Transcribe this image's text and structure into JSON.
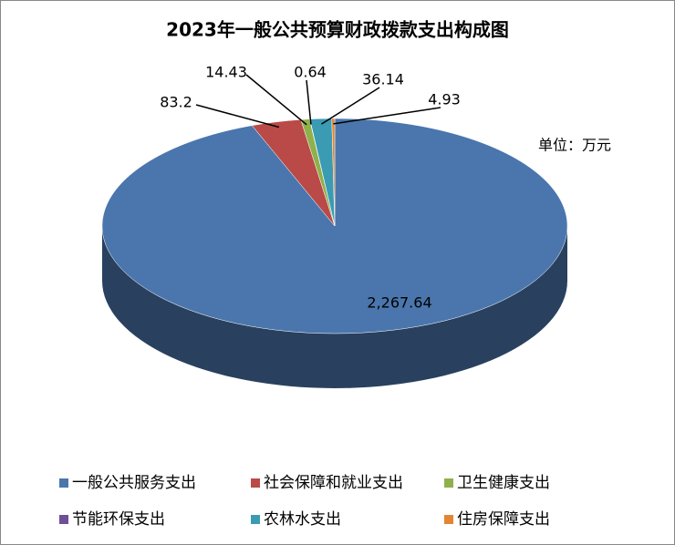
{
  "chart_data": {
    "type": "pie",
    "title": "2023年一般公共预算财政拨款支出构成图",
    "annotation": "单位：万元",
    "categories": [
      "一般公共服务支出",
      "社会保障和就业支出",
      "卫生健康支出",
      "节能环保支出",
      "农林水支出",
      "住房保障支出"
    ],
    "values": [
      2267.64,
      83.2,
      14.43,
      0.64,
      36.14,
      4.93
    ],
    "value_labels": [
      "2,267.64",
      "83.2",
      "14.43",
      "0.64",
      "36.14",
      "4.93"
    ],
    "colors": [
      "#4a76ad",
      "#b94a48",
      "#8fb04b",
      "#6f4f98",
      "#3a9bb3",
      "#e48533"
    ],
    "legend": "bottom"
  }
}
